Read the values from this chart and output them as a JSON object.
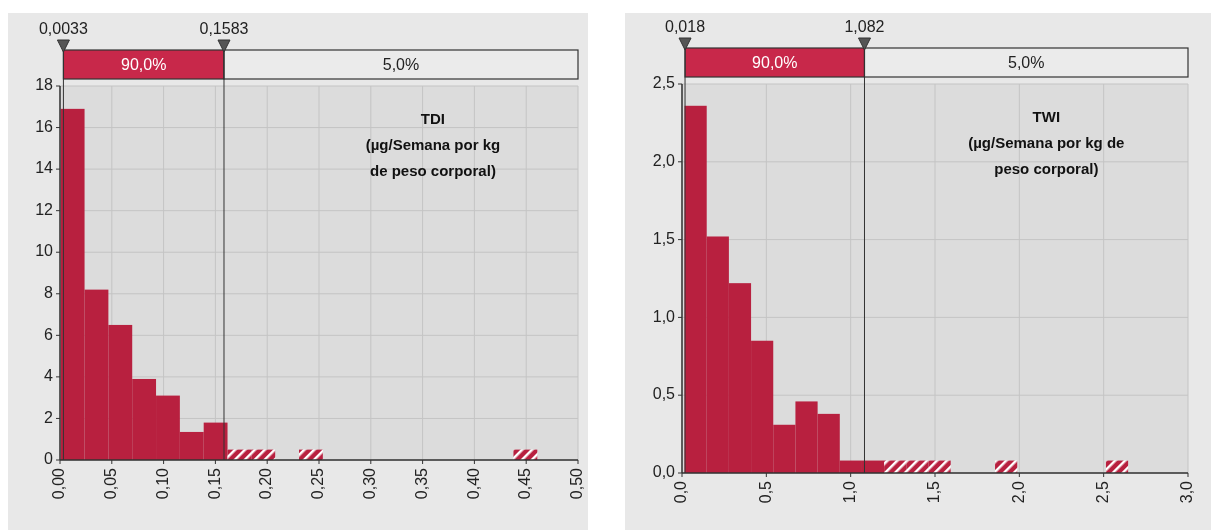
{
  "chart_data": [
    {
      "type": "histogram",
      "title": "TDI\n(µg/Semana por kg\nde peso corporal)",
      "color": "#b8203f",
      "bins": [
        0.0007,
        0.0237,
        0.0467,
        0.0697,
        0.0927,
        0.1157,
        0.1387,
        0.1617,
        0.1847,
        0.2077,
        0.2307,
        0.2537,
        0.2767,
        0.2997,
        0.3227,
        0.3457,
        0.3687,
        0.3917,
        0.4147,
        0.4377,
        0.4607
      ],
      "values": [
        16.9,
        8.2,
        6.5,
        3.9,
        3.1,
        1.35,
        1.8,
        0.5,
        0.5,
        0,
        0.5,
        0,
        0,
        0,
        0,
        0,
        0,
        0,
        0,
        0.5
      ],
      "xlim": [
        0,
        0.5
      ],
      "xticks": [
        {
          "value": 0,
          "label": "0,00"
        },
        {
          "value": 0.05,
          "label": "0,05"
        },
        {
          "value": 0.1,
          "label": "0,10"
        },
        {
          "value": 0.15,
          "label": "0,15"
        },
        {
          "value": 0.2,
          "label": "0,20"
        },
        {
          "value": 0.25,
          "label": "0,25"
        },
        {
          "value": 0.3,
          "label": "0,30"
        },
        {
          "value": 0.35,
          "label": "0,35"
        },
        {
          "value": 0.4,
          "label": "0,40"
        },
        {
          "value": 0.45,
          "label": "0,45"
        },
        {
          "value": 0.5,
          "label": "0,50"
        }
      ],
      "ylim": [
        0,
        18
      ],
      "yticks": [
        0,
        2,
        4,
        6,
        8,
        10,
        12,
        14,
        16,
        18
      ],
      "grid": true,
      "ref_lines": [
        {
          "axis": "x",
          "value": 0.0033,
          "label": "0,0033"
        },
        {
          "axis": "x",
          "value": 0.1583,
          "label": "0,1583"
        }
      ],
      "annotations": [
        "90,0%",
        "5,0%"
      ]
    },
    {
      "type": "histogram",
      "title": "TWI\n(µg/Semana por kg de\npeso corporal)",
      "color": "#b8203f",
      "bins": [
        0.015,
        0.1465,
        0.278,
        0.4095,
        0.541,
        0.6725,
        0.804,
        0.9355,
        1.067,
        1.1985,
        1.33,
        1.4615,
        1.593,
        1.7245,
        1.856,
        1.9875,
        2.119,
        2.2505,
        2.382,
        2.5135,
        2.645
      ],
      "values": [
        2.36,
        1.52,
        1.22,
        0.85,
        0.31,
        0.46,
        0.38,
        0.08,
        0.08,
        0.08,
        0.08,
        0.08,
        0,
        0,
        0.08,
        0,
        0,
        0,
        0,
        0.08
      ],
      "xlim": [
        0,
        3
      ],
      "xticks": [
        {
          "value": 0,
          "label": "0,0"
        },
        {
          "value": 0.5,
          "label": "0,5"
        },
        {
          "value": 1,
          "label": "1,0"
        },
        {
          "value": 1.5,
          "label": "1,5"
        },
        {
          "value": 2,
          "label": "2,0"
        },
        {
          "value": 2.5,
          "label": "2,5"
        },
        {
          "value": 3,
          "label": "3,0"
        }
      ],
      "ylim": [
        0,
        2.5
      ],
      "yticks": [
        {
          "value": 0,
          "label": "0,0"
        },
        {
          "value": 0.5,
          "label": "0,5"
        },
        {
          "value": 1,
          "label": "1,0"
        },
        {
          "value": 1.5,
          "label": "1,5"
        },
        {
          "value": 2,
          "label": "2,0"
        },
        {
          "value": 2.5,
          "label": "2,5"
        }
      ],
      "grid": true,
      "ref_lines": [
        {
          "axis": "x",
          "value": 0.018,
          "label": "0,018"
        },
        {
          "axis": "x",
          "value": 1.082,
          "label": "1,082"
        }
      ],
      "annotations": [
        "90,0%",
        "5,0%"
      ]
    }
  ]
}
